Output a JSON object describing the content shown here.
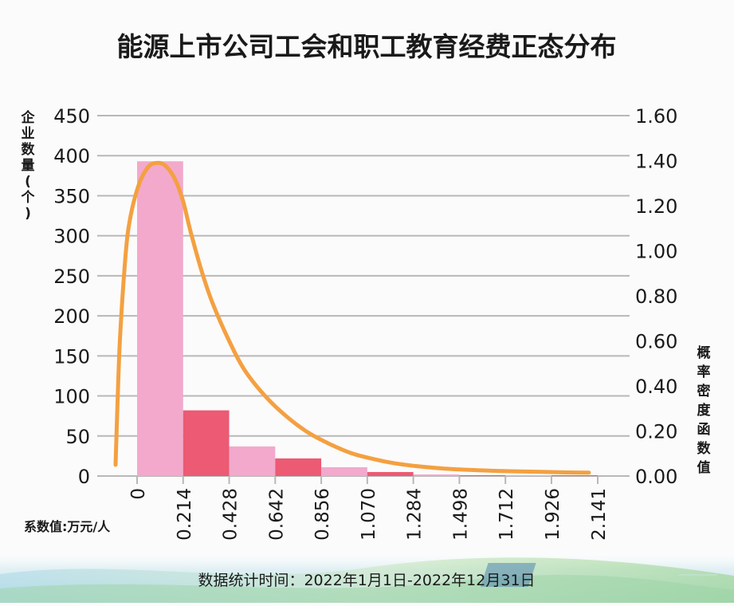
{
  "chart_data": {
    "type": "bar",
    "title": "能源上市公司工会和职工教育经费正态分布",
    "ylabel_left": "企业数量(个)",
    "ylabel_right": "概率密度函数值",
    "xlabel": "系数值:万元/人",
    "x_ticks": [
      "0",
      "0.214",
      "0.428",
      "0.642",
      "0.856",
      "1.070",
      "1.284",
      "1.498",
      "1.712",
      "1.926",
      "2.141"
    ],
    "left_ticks": [
      "0",
      "50",
      "100",
      "150",
      "200",
      "250",
      "300",
      "350",
      "400",
      "450"
    ],
    "right_ticks": [
      "0.00",
      "0.20",
      "0.40",
      "0.60",
      "0.80",
      "1.00",
      "1.20",
      "1.40",
      "1.60"
    ],
    "ylim_left": [
      0,
      450
    ],
    "ylim_right": [
      0,
      1.6
    ],
    "grid": true,
    "bins": [
      {
        "from": 0,
        "to": 0.214,
        "count": 393,
        "color": "#f2a9cc"
      },
      {
        "from": 0.214,
        "to": 0.428,
        "count": 82,
        "color": "#ec5a73"
      },
      {
        "from": 0.428,
        "to": 0.642,
        "count": 37,
        "color": "#f2a9cc"
      },
      {
        "from": 0.642,
        "to": 0.856,
        "count": 22,
        "color": "#ec5a73"
      },
      {
        "from": 0.856,
        "to": 1.07,
        "count": 11,
        "color": "#f2a9cc"
      },
      {
        "from": 1.07,
        "to": 1.284,
        "count": 5,
        "color": "#ec5a73"
      },
      {
        "from": 1.284,
        "to": 1.498,
        "count": 2,
        "color": "#f2a9cc"
      },
      {
        "from": 1.498,
        "to": 1.712,
        "count": 1,
        "color": "#ec5a73"
      },
      {
        "from": 1.712,
        "to": 1.926,
        "count": 1,
        "color": "#f2a9cc"
      },
      {
        "from": 1.926,
        "to": 2.141,
        "count": 1,
        "color": "#ec5a73"
      }
    ],
    "pdf_curve": {
      "x": [
        -0.1,
        -0.09,
        -0.08,
        -0.06,
        -0.04,
        0.0,
        0.05,
        0.1,
        0.14,
        0.18,
        0.214,
        0.25,
        0.3,
        0.35,
        0.428,
        0.5,
        0.6,
        0.7,
        0.8,
        0.9,
        1.0,
        1.1,
        1.2,
        1.3,
        1.4,
        1.5,
        1.6,
        1.7,
        1.8,
        1.9,
        2.0,
        2.1
      ],
      "y": [
        0.05,
        0.35,
        0.6,
        0.9,
        1.1,
        1.27,
        1.37,
        1.39,
        1.37,
        1.31,
        1.22,
        1.08,
        0.91,
        0.77,
        0.6,
        0.47,
        0.35,
        0.26,
        0.19,
        0.14,
        0.1,
        0.075,
        0.056,
        0.044,
        0.035,
        0.029,
        0.025,
        0.022,
        0.02,
        0.018,
        0.016,
        0.015
      ],
      "color": "#f4a041"
    },
    "grid_color": "#b8b8b8"
  },
  "footer": {
    "date_range": "数据统计时间：2022年1月1日-2022年12月31日"
  }
}
